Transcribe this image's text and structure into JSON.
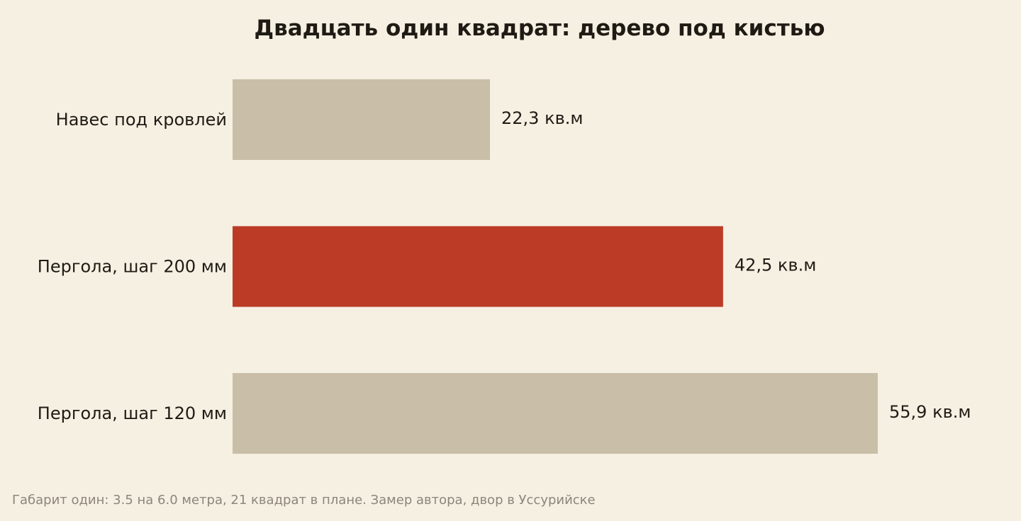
{
  "chart_data": {
    "type": "bar",
    "orientation": "horizontal",
    "title": "Двадцать один квадрат: дерево под кистью",
    "categories": [
      "Навес под кровлей",
      "Пергола, шаг 200 мм",
      "Пергола, шаг 120 мм"
    ],
    "values": [
      22.3,
      42.5,
      55.9
    ],
    "value_labels": [
      "22,3 кв.м",
      "42,5 кв.м",
      "55,9 кв.м"
    ],
    "unit": "кв.м",
    "highlight_index": 1,
    "colors": {
      "default": "#c9bfa8",
      "highlight": "#bc3b26",
      "background": "#f6f0e3",
      "text": "#1f1b14",
      "note": "#8c8579"
    },
    "grid": false,
    "xlim": [
      0,
      55.9
    ]
  },
  "footnote": "Габарит один: 3.5 на 6.0 метра, 21 квадрат в плане. Замер автора, двор в Уссурийске"
}
